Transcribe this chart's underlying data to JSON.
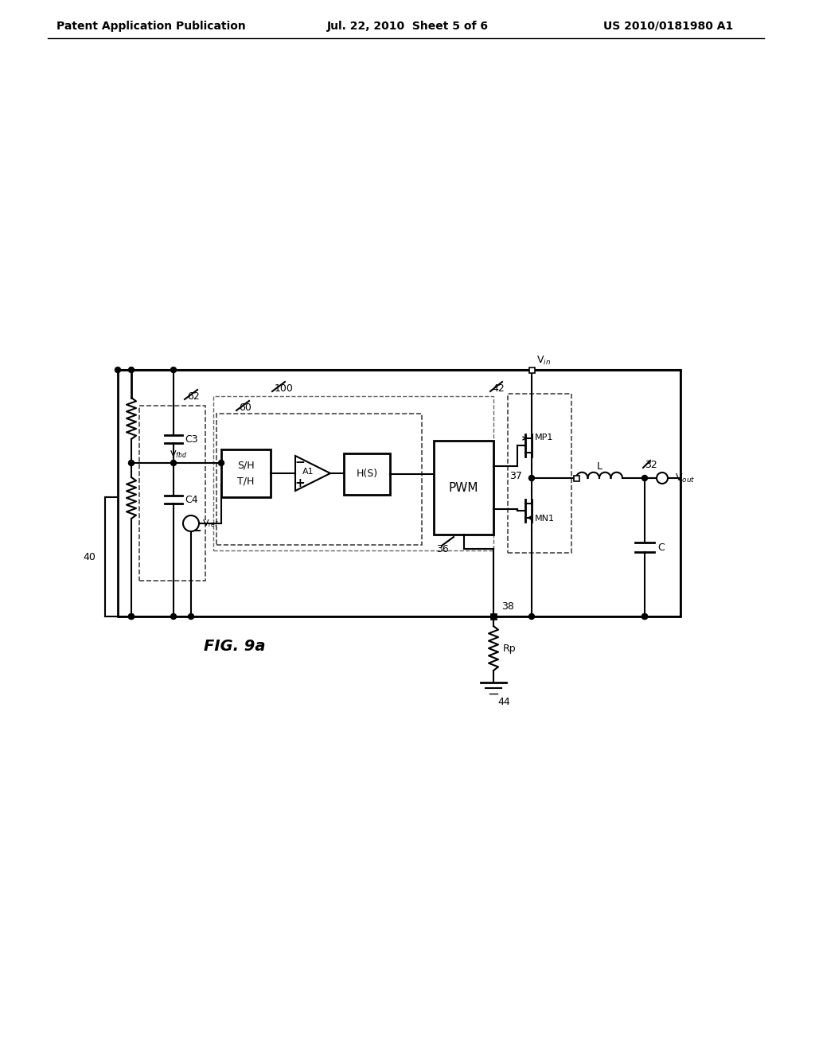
{
  "header_left": "Patent Application Publication",
  "header_mid": "Jul. 22, 2010  Sheet 5 of 6",
  "header_right": "US 2010/0181980 A1",
  "fig_label": "FIG. 9a",
  "background": "#ffffff",
  "line_color": "#000000"
}
